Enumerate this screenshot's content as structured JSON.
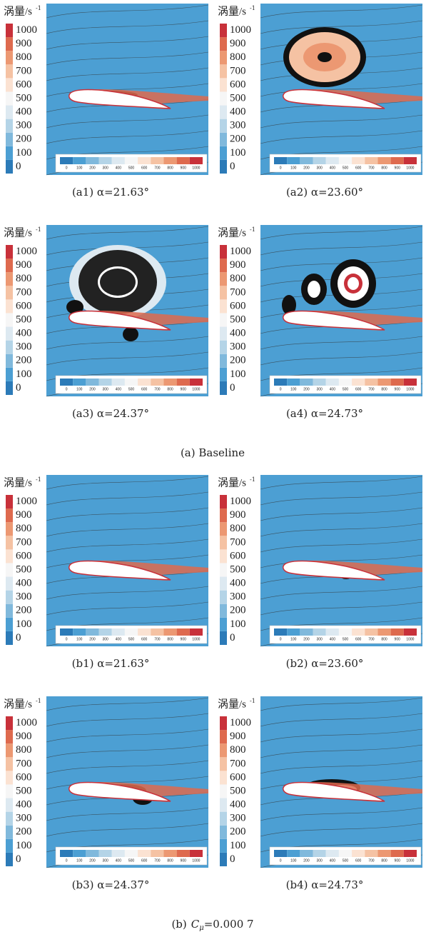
{
  "colorbar": {
    "title": "涡量/s",
    "title_superscript": "-1",
    "ticks": [
      "0",
      "100",
      "200",
      "300",
      "400",
      "500",
      "600",
      "700",
      "800",
      "900",
      "1000"
    ],
    "colors": [
      "#2c7bb8",
      "#4c9fd3",
      "#80b9dc",
      "#b4d4e7",
      "#dde9f1",
      "#f6f6f6",
      "#fbe2d2",
      "#f5c2a3",
      "#ec9872",
      "#de6a4e",
      "#c8313a"
    ]
  },
  "groups": [
    {
      "caption": {
        "label": "(a) Baseline"
      },
      "panels": [
        {
          "caption": "(a1) α=21.63°"
        },
        {
          "caption": "(a2) α=23.60°"
        },
        {
          "caption": "(a3) α=24.37°"
        },
        {
          "caption": "(a4) α=24.73°"
        }
      ]
    },
    {
      "caption": {
        "label": "(b)",
        "symbol": "C",
        "subscript": "μ",
        "value": "=0.000 7"
      },
      "panels": [
        {
          "caption": "(b1) α=21.63°"
        },
        {
          "caption": "(b2) α=23.60°"
        },
        {
          "caption": "(b3) α=24.37°"
        },
        {
          "caption": "(b4) α=24.73°"
        }
      ]
    }
  ]
}
